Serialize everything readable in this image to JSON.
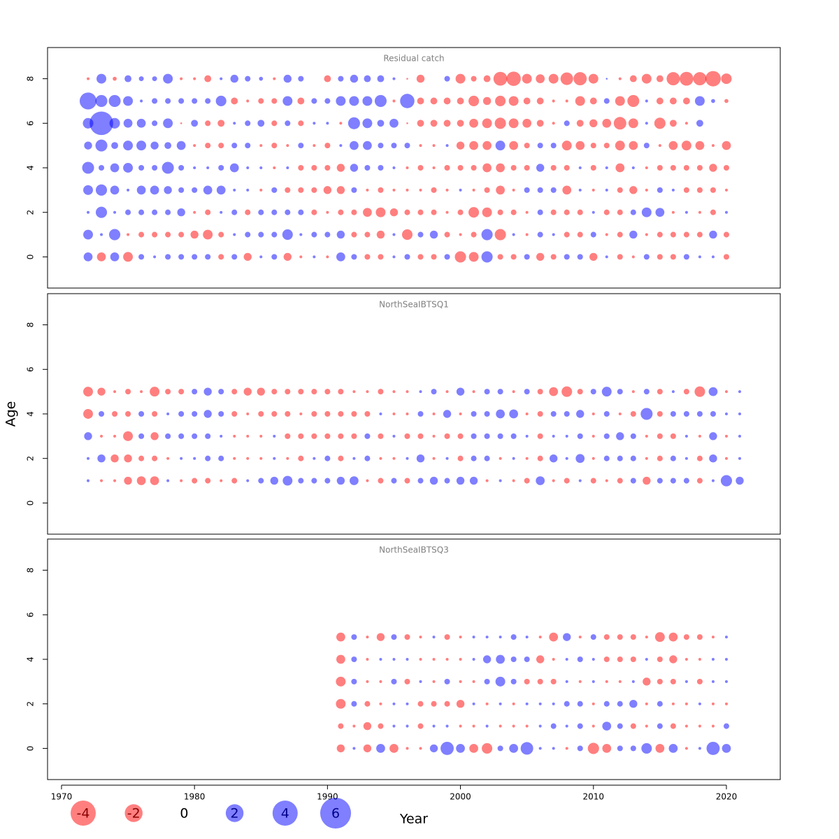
{
  "xlabel": "Year",
  "ylabel": "Age",
  "size_legend": {
    "values": [
      -4,
      -2,
      0,
      2,
      4,
      6
    ]
  },
  "chart_data": [
    {
      "type": "bubble",
      "title": "Residual catch",
      "pos_color": "rgba(0,0,255,0.5)",
      "neg_color": "rgba(255,0,0,0.5)",
      "xlim": [
        1968.95,
        2024.05
      ],
      "ylim": [
        -1.4,
        9.4
      ],
      "yticks": [
        0,
        2,
        4,
        6,
        8
      ],
      "x": [
        1972,
        1973,
        1974,
        1975,
        1976,
        1977,
        1978,
        1979,
        1980,
        1981,
        1982,
        1983,
        1984,
        1985,
        1986,
        1987,
        1988,
        1989,
        1990,
        1991,
        1992,
        1993,
        1994,
        1995,
        1996,
        1997,
        1998,
        1999,
        2000,
        2001,
        2002,
        2003,
        2004,
        2005,
        2006,
        2007,
        2008,
        2009,
        2010,
        2011,
        2012,
        2013,
        2014,
        2015,
        2016,
        2017,
        2018,
        2019,
        2020
      ],
      "ages": [
        8,
        7,
        6,
        5,
        4,
        3,
        2,
        1,
        0
      ],
      "values": [
        [
          -0.05,
          0.6,
          -0.1,
          0.3,
          0.15,
          0.15,
          0.6,
          -0.05,
          -0.05,
          -0.3,
          0.05,
          0.4,
          0.2,
          0.1,
          -0.05,
          0.4,
          0.2,
          0,
          -0.3,
          0.2,
          0.4,
          0.3,
          0.3,
          0.05,
          -0.02,
          -0.4,
          0,
          0.2,
          -0.6,
          -0.2,
          -0.3,
          -1.2,
          -1.3,
          -0.6,
          -0.5,
          -0.6,
          -1.0,
          -1.1,
          -0.6,
          0.02,
          -0.05,
          -0.3,
          -0.6,
          -0.3,
          -1.1,
          -1.2,
          -1.1,
          -1.5,
          -0.7
        ],
        [
          1.8,
          0.9,
          0.9,
          0.6,
          0.05,
          0.2,
          0.2,
          0.2,
          0.2,
          0.2,
          0.7,
          -0.3,
          -0.05,
          -0.2,
          -0.2,
          0.6,
          -0.3,
          0.2,
          0.2,
          0.6,
          0.6,
          0.6,
          0.9,
          -0.05,
          1.3,
          -0.3,
          -0.3,
          -0.3,
          -0.3,
          -0.7,
          -0.4,
          -0.7,
          -0.6,
          -0.3,
          -0.3,
          -0.05,
          -0.05,
          -0.6,
          -0.3,
          0.2,
          -0.6,
          -0.9,
          0.05,
          -0.3,
          -0.3,
          -0.3,
          0.6,
          0.1,
          -0.1
        ],
        [
          0.7,
          3.5,
          0.7,
          0.5,
          0.5,
          0.2,
          0.6,
          -0.02,
          0.3,
          -0.2,
          -0.3,
          0.05,
          0.2,
          0.3,
          -0.2,
          0.2,
          -0.2,
          0.05,
          0.05,
          -0.05,
          0.9,
          0.6,
          0.3,
          0.5,
          -0.02,
          -0.3,
          -0.3,
          -0.3,
          -0.3,
          -0.5,
          -0.6,
          -0.8,
          -0.6,
          -0.5,
          -0.3,
          -0.05,
          0.2,
          -0.3,
          -0.4,
          -0.5,
          -1.0,
          -0.6,
          0.05,
          -0.8,
          -0.3,
          -0.05,
          0.3,
          0,
          0
        ],
        [
          0.4,
          0.9,
          0.3,
          0.6,
          0.6,
          0.4,
          0.3,
          0.5,
          -0.05,
          -0.2,
          -0.2,
          0.2,
          0.2,
          -0.05,
          -0.2,
          -0.05,
          0.2,
          -0.05,
          -0.2,
          0.05,
          0.5,
          0.5,
          0.2,
          0.2,
          0.2,
          -0.05,
          -0.05,
          0.05,
          -0.4,
          -0.5,
          -0.5,
          0.6,
          -0.5,
          -0.2,
          0.2,
          0.2,
          -0.6,
          -0.5,
          -0.2,
          -0.2,
          -0.6,
          -0.5,
          0.2,
          -0.05,
          -0.5,
          -0.6,
          -0.5,
          -0.05,
          -0.5
        ],
        [
          0.9,
          0.2,
          0.5,
          0.6,
          0.2,
          0.2,
          0.9,
          0.2,
          0.05,
          0.05,
          0.2,
          0.5,
          0.05,
          0.05,
          -0.05,
          0.05,
          -0.2,
          -0.2,
          -0.2,
          -0.4,
          0.4,
          0.2,
          0.2,
          0.05,
          -0.05,
          -0.2,
          -0.05,
          -0.2,
          -0.2,
          -0.2,
          -0.5,
          -0.5,
          -0.2,
          -0.2,
          0.4,
          -0.2,
          -0.2,
          0.05,
          -0.2,
          0.05,
          -0.5,
          0.05,
          -0.05,
          -0.2,
          -0.2,
          -0.2,
          -0.2,
          -0.4,
          -0.2
        ],
        [
          0.6,
          0.8,
          0.5,
          0.05,
          0.5,
          0.5,
          0.4,
          0.2,
          0.2,
          0.5,
          0.5,
          0.05,
          0.05,
          -0.05,
          0.2,
          -0.2,
          -0.2,
          -0.2,
          -0.4,
          -0.4,
          0.2,
          -0.05,
          -0.2,
          -0.05,
          -0.05,
          -0.05,
          -0.2,
          -0.05,
          0.05,
          -0.05,
          -0.2,
          -0.5,
          -0.05,
          0.2,
          0.2,
          0.2,
          -0.5,
          0.05,
          -0.05,
          0.05,
          -0.2,
          -0.4,
          -0.05,
          0.2,
          0.05,
          -0.2,
          -0.2,
          -0.2,
          -0.05
        ],
        [
          0.05,
          0.8,
          0.05,
          0.2,
          0.2,
          0.2,
          0.2,
          0.4,
          -0.05,
          -0.2,
          0.05,
          0.2,
          -0.2,
          0.2,
          0.2,
          0.2,
          0.2,
          -0.2,
          -0.05,
          -0.2,
          -0.2,
          -0.5,
          -0.6,
          -0.4,
          -0.2,
          -0.2,
          -0.2,
          -0.05,
          -0.2,
          -0.7,
          -0.6,
          -0.2,
          -0.2,
          -0.05,
          0.2,
          -0.2,
          -0.2,
          -0.2,
          0.05,
          -0.2,
          -0.2,
          0.2,
          0.6,
          0.5,
          -0.05,
          0.05,
          -0.05,
          -0.2,
          0.05
        ],
        [
          0.6,
          0.05,
          0.8,
          -0.05,
          -0.2,
          -0.2,
          -0.2,
          -0.2,
          -0.4,
          -0.6,
          -0.2,
          0.05,
          0.2,
          0.2,
          0.2,
          0.7,
          0.05,
          0.2,
          0.2,
          0.4,
          -0.2,
          -0.2,
          -0.4,
          0.05,
          -0.7,
          0.2,
          0.4,
          -0.2,
          -0.05,
          -0.2,
          0.8,
          -0.8,
          0.05,
          -0.05,
          0.2,
          0.05,
          -0.2,
          -0.2,
          0.2,
          -0.05,
          -0.2,
          0.4,
          -0.05,
          -0.2,
          -0.2,
          -0.2,
          -0.2,
          0.4,
          -0.2
        ],
        [
          0.5,
          -0.5,
          0.5,
          -0.6,
          0.2,
          0.05,
          0.2,
          0.2,
          0.2,
          0.2,
          -0.2,
          0.2,
          -0.4,
          0.05,
          0.2,
          -0.4,
          -0.05,
          0.05,
          -0.05,
          0.5,
          0.2,
          -0.2,
          -0.2,
          0.05,
          0.2,
          -0.2,
          -0.2,
          0.2,
          -0.8,
          -0.6,
          0.8,
          -0.2,
          -0.2,
          0.2,
          -0.4,
          -0.2,
          0.2,
          0.2,
          -0.4,
          0.05,
          -0.2,
          -0.05,
          0.2,
          -0.2,
          -0.2,
          0.2,
          0.05,
          0.05,
          -0.2
        ]
      ]
    },
    {
      "type": "bubble",
      "title": "NorthSeaIBTSQ1",
      "pos_color": "rgba(0,0,255,0.5)",
      "neg_color": "rgba(255,0,0,0.5)",
      "xlim": [
        1968.95,
        2024.05
      ],
      "ylim": [
        -1.4,
        9.4
      ],
      "yticks": [
        0,
        2,
        4,
        6,
        8
      ],
      "x": [
        1972,
        1973,
        1974,
        1975,
        1976,
        1977,
        1978,
        1979,
        1980,
        1981,
        1982,
        1983,
        1984,
        1985,
        1986,
        1987,
        1988,
        1989,
        1990,
        1991,
        1992,
        1993,
        1994,
        1995,
        1996,
        1997,
        1998,
        1999,
        2000,
        2001,
        2002,
        2003,
        2004,
        2005,
        2006,
        2007,
        2008,
        2009,
        2010,
        2011,
        2012,
        2013,
        2014,
        2015,
        2016,
        2017,
        2018,
        2019,
        2020,
        2021
      ],
      "ages": [
        5,
        4,
        3,
        2,
        1
      ],
      "values": [
        [
          -0.6,
          -0.4,
          -0.05,
          -0.2,
          -0.05,
          -0.6,
          -0.2,
          -0.2,
          0.2,
          0.4,
          0.2,
          -0.2,
          -0.4,
          -0.4,
          -0.2,
          -0.2,
          -0.2,
          -0.2,
          -0.2,
          -0.2,
          -0.05,
          -0.05,
          -0.2,
          -0.05,
          -0.05,
          0.05,
          0.2,
          -0.05,
          0.4,
          -0.05,
          0.2,
          0.2,
          -0.05,
          0.2,
          -0.2,
          -0.5,
          -0.7,
          -0.2,
          0.2,
          0.6,
          0.2,
          -0.05,
          0.2,
          -0.2,
          0.05,
          -0.2,
          -0.7,
          0.5,
          -0.05,
          0.05
        ],
        [
          -0.6,
          0.2,
          -0.2,
          -0.2,
          0.2,
          -0.2,
          0.05,
          0.2,
          0.2,
          0.4,
          0.2,
          -0.2,
          -0.05,
          -0.2,
          -0.2,
          -0.2,
          -0.05,
          -0.2,
          -0.2,
          -0.2,
          -0.2,
          -0.2,
          0.05,
          -0.05,
          -0.05,
          0.2,
          -0.05,
          0.4,
          -0.05,
          0.2,
          0.2,
          0.5,
          0.5,
          -0.05,
          -0.2,
          0.2,
          0.2,
          0.4,
          -0.05,
          0.2,
          -0.05,
          -0.2,
          0.9,
          -0.2,
          0.2,
          0.2,
          0.2,
          0.2,
          0.05,
          0.05
        ],
        [
          0.4,
          -0.05,
          -0.05,
          -0.6,
          0.2,
          -0.4,
          0.2,
          0.2,
          0.2,
          0.2,
          0.05,
          -0.05,
          -0.05,
          -0.05,
          0.05,
          -0.2,
          -0.2,
          -0.2,
          -0.2,
          -0.2,
          -0.2,
          0.2,
          -0.2,
          0.05,
          -0.2,
          -0.2,
          -0.05,
          -0.2,
          -0.2,
          0.2,
          0.2,
          0.2,
          0.2,
          0.05,
          -0.2,
          0.05,
          0.05,
          0.2,
          -0.05,
          0.2,
          0.4,
          0.2,
          -0.05,
          -0.2,
          -0.2,
          0.05,
          -0.05,
          0.4,
          -0.05,
          0.05
        ],
        [
          0.05,
          0.4,
          -0.4,
          -0.4,
          -0.2,
          -0.2,
          -0.05,
          0.05,
          0.05,
          0.2,
          0.2,
          -0.05,
          -0.05,
          -0.05,
          0.05,
          -0.05,
          -0.2,
          0.05,
          0.2,
          -0.2,
          0.05,
          0.2,
          -0.05,
          -0.05,
          0.05,
          0.4,
          -0.05,
          0.05,
          -0.2,
          0.2,
          0.2,
          -0.05,
          0.05,
          -0.05,
          -0.2,
          0.4,
          0.05,
          0.5,
          -0.05,
          0.2,
          0.2,
          0.2,
          -0.05,
          -0.2,
          0.2,
          0.05,
          -0.2,
          0.4,
          -0.05,
          0.05
        ],
        [
          0.05,
          -0.05,
          -0.05,
          -0.4,
          -0.5,
          -0.5,
          0.05,
          -0.05,
          -0.2,
          -0.2,
          -0.05,
          -0.2,
          0.05,
          0.2,
          0.4,
          0.6,
          0.2,
          0.2,
          0.2,
          0.4,
          0.5,
          -0.05,
          -0.2,
          0.2,
          -0.2,
          0.2,
          0.4,
          0.2,
          0.4,
          0.4,
          -0.05,
          0.05,
          -0.05,
          -0.2,
          0.5,
          -0.05,
          -0.2,
          0.05,
          -0.2,
          -0.05,
          -0.2,
          0.2,
          -0.4,
          0.2,
          0.2,
          0.2,
          -0.2,
          0.05,
          0.8,
          0.4
        ]
      ]
    },
    {
      "type": "bubble",
      "title": "NorthSeaIBTSQ3",
      "pos_color": "rgba(0,0,255,0.5)",
      "neg_color": "rgba(255,0,0,0.5)",
      "xlim": [
        1968.95,
        2024.05
      ],
      "ylim": [
        -1.4,
        9.4
      ],
      "yticks": [
        0,
        2,
        4,
        6,
        8
      ],
      "xticks": [
        1970,
        1980,
        1990,
        2000,
        2010,
        2020
      ],
      "x": [
        1991,
        1992,
        1993,
        1994,
        1995,
        1996,
        1997,
        1998,
        1999,
        2000,
        2001,
        2002,
        2003,
        2004,
        2005,
        2006,
        2007,
        2008,
        2009,
        2010,
        2011,
        2012,
        2013,
        2014,
        2015,
        2016,
        2017,
        2018,
        2019,
        2020
      ],
      "ages": [
        5,
        4,
        3,
        2,
        1,
        0
      ],
      "values": [
        [
          -0.5,
          0.2,
          -0.05,
          -0.4,
          0.2,
          -0.2,
          -0.05,
          0.05,
          -0.2,
          -0.05,
          0.05,
          0.05,
          0.05,
          0.2,
          0.05,
          -0.05,
          -0.5,
          0.4,
          -0.05,
          0.2,
          -0.2,
          -0.2,
          -0.2,
          -0.05,
          -0.6,
          -0.5,
          -0.2,
          -0.2,
          -0.05,
          0.05
        ],
        [
          -0.5,
          0.2,
          -0.05,
          0.05,
          0.05,
          0.05,
          -0.05,
          -0.05,
          -0.05,
          -0.05,
          0.05,
          0.4,
          0.5,
          0.2,
          0.2,
          -0.4,
          -0.05,
          0.05,
          0.2,
          0.05,
          -0.2,
          -0.2,
          -0.2,
          0.05,
          -0.2,
          -0.4,
          -0.05,
          -0.05,
          0.05,
          0.05
        ],
        [
          -0.6,
          0.2,
          -0.05,
          -0.05,
          0.2,
          -0.2,
          0.05,
          -0.05,
          0.2,
          -0.05,
          -0.05,
          0.2,
          0.6,
          0.2,
          -0.2,
          -0.2,
          -0.2,
          0.05,
          -0.05,
          0.05,
          -0.05,
          -0.05,
          0.05,
          -0.4,
          -0.2,
          -0.2,
          0.05,
          -0.2,
          0.05,
          0.05
        ],
        [
          -0.6,
          0.2,
          -0.2,
          -0.05,
          0.05,
          0.05,
          -0.2,
          -0.2,
          -0.2,
          -0.4,
          0.05,
          -0.05,
          0.05,
          -0.05,
          0.05,
          0.05,
          0.05,
          0.2,
          0.2,
          -0.05,
          0.2,
          0.2,
          0.4,
          -0.05,
          0.2,
          -0.05,
          -0.05,
          0.05,
          -0.05,
          -0.05
        ],
        [
          -0.2,
          -0.05,
          -0.4,
          -0.2,
          0.05,
          0.05,
          -0.2,
          0.05,
          0.05,
          -0.05,
          -0.05,
          0.05,
          -0.05,
          -0.05,
          -0.05,
          0.05,
          0.2,
          0.05,
          0.2,
          -0.05,
          0.5,
          0.2,
          -0.2,
          -0.05,
          0.2,
          -0.2,
          -0.05,
          -0.05,
          -0.05,
          0.2
        ],
        [
          -0.4,
          0.05,
          -0.4,
          0.5,
          -0.5,
          -0.05,
          -0.05,
          0.4,
          1.1,
          0.5,
          -0.5,
          -0.7,
          0.2,
          0.5,
          1.0,
          0.05,
          0.05,
          -0.05,
          0.2,
          -0.8,
          -0.5,
          0.2,
          0.2,
          0.7,
          -0.5,
          0.5,
          -0.05,
          0.05,
          1.1,
          0.5
        ]
      ]
    }
  ]
}
